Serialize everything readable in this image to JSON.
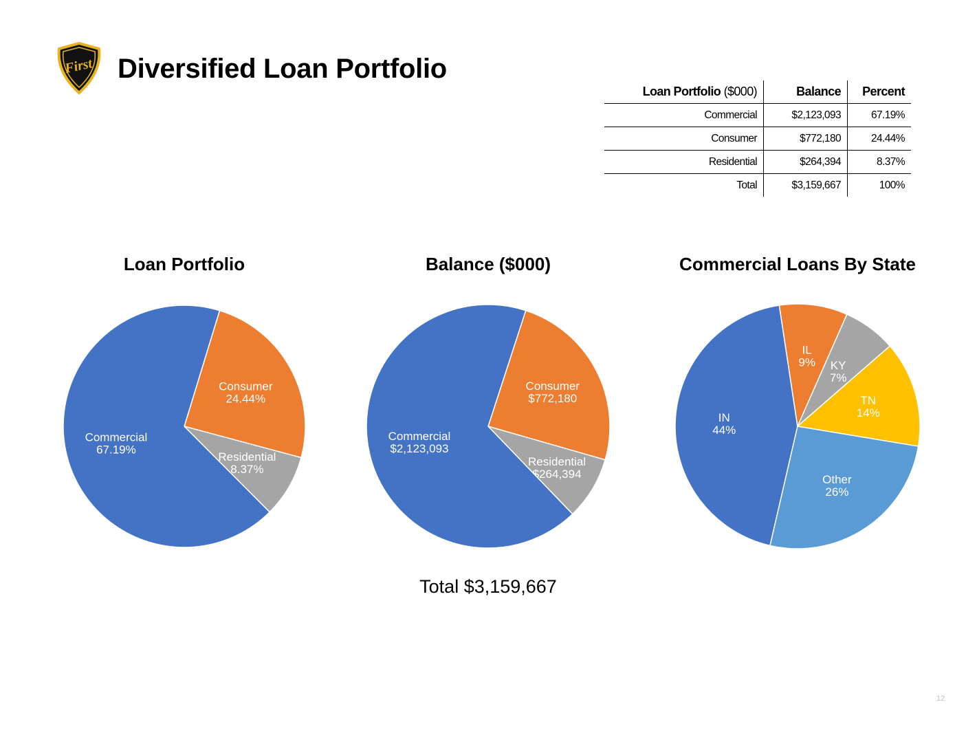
{
  "header": {
    "title": "Diversified Loan Portfolio",
    "logo_text": "First"
  },
  "table": {
    "header": {
      "label_bold": "Loan Portfolio",
      "label_unit": "($000)",
      "balance": "Balance",
      "percent": "Percent"
    },
    "rows": [
      {
        "label": "Commercial",
        "balance": "$2,123,093",
        "percent": "67.19%"
      },
      {
        "label": "Consumer",
        "balance": "$772,180",
        "percent": "24.44%"
      },
      {
        "label": "Residential",
        "balance": "$264,394",
        "percent": "8.37%"
      },
      {
        "label": "Total",
        "balance": "$3,159,667",
        "percent": "100%"
      }
    ]
  },
  "total_label": "Total $3,159,667",
  "page_number": "12",
  "colors": {
    "blue": "#4472C4",
    "orange": "#ED7D31",
    "gray": "#A5A5A5",
    "yellow": "#FFC000",
    "light_blue": "#5B9BD5",
    "logo_gold": "#E6B422"
  },
  "chart_data": [
    {
      "type": "pie",
      "title": "Loan Portfolio",
      "slices": [
        {
          "label": "Commercial",
          "display": "67.19%",
          "value": 67.19,
          "color": "#4472C4"
        },
        {
          "label": "Consumer",
          "display": "24.44%",
          "value": 24.44,
          "color": "#ED7D31"
        },
        {
          "label": "Residential",
          "display": "8.37%",
          "value": 8.37,
          "color": "#A5A5A5"
        }
      ]
    },
    {
      "type": "pie",
      "title": "Balance ($000)",
      "slices": [
        {
          "label": "Commercial",
          "display": "$2,123,093",
          "value": 2123093,
          "color": "#4472C4"
        },
        {
          "label": "Consumer",
          "display": "$772,180",
          "value": 772180,
          "color": "#ED7D31"
        },
        {
          "label": "Residential",
          "display": "$264,394",
          "value": 264394,
          "color": "#A5A5A5"
        }
      ]
    },
    {
      "type": "pie",
      "title": "Commercial Loans By State",
      "slices": [
        {
          "label": "IN",
          "display": "44%",
          "value": 44,
          "color": "#4472C4"
        },
        {
          "label": "IL",
          "display": "9%",
          "value": 9,
          "color": "#ED7D31"
        },
        {
          "label": "KY",
          "display": "7%",
          "value": 7,
          "color": "#A5A5A5"
        },
        {
          "label": "TN",
          "display": "14%",
          "value": 14,
          "color": "#FFC000"
        },
        {
          "label": "Other",
          "display": "26%",
          "value": 26,
          "color": "#5B9BD5"
        }
      ]
    }
  ]
}
